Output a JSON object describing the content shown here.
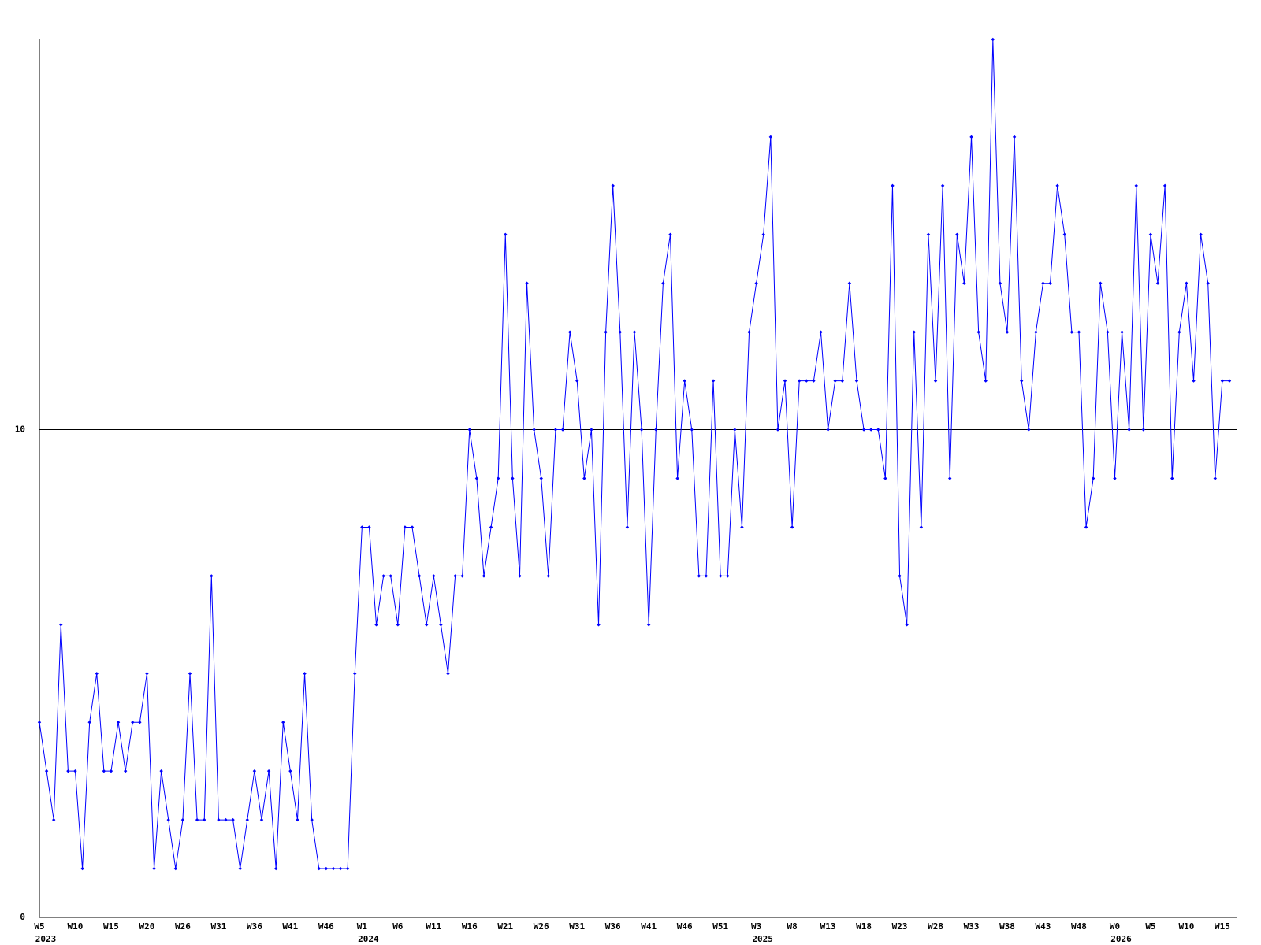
{
  "chart_data": {
    "type": "line",
    "color": "#0000ff",
    "ylim": [
      0,
      18
    ],
    "yticks": [
      0,
      10
    ],
    "grid": true,
    "categories": [
      "W5",
      null,
      null,
      null,
      null,
      "W10",
      null,
      null,
      null,
      null,
      "W15",
      null,
      null,
      null,
      null,
      "W20",
      null,
      null,
      null,
      null,
      "W26",
      null,
      null,
      null,
      null,
      "W31",
      null,
      null,
      null,
      null,
      "W36",
      null,
      null,
      null,
      null,
      "W41",
      null,
      null,
      null,
      null,
      "W46",
      null,
      null,
      null,
      null,
      "W1",
      null,
      null,
      null,
      null,
      "W6",
      null,
      null,
      null,
      null,
      "W11",
      null,
      null,
      null,
      null,
      "W16",
      null,
      null,
      null,
      null,
      "W21",
      null,
      null,
      null,
      null,
      "W26",
      null,
      null,
      null,
      null,
      "W31",
      null,
      null,
      null,
      null,
      "W36",
      null,
      null,
      null,
      null,
      "W41",
      null,
      null,
      null,
      null,
      "W46",
      null,
      null,
      null,
      null,
      "W51",
      null,
      null,
      null,
      null,
      "W3",
      null,
      null,
      null,
      null,
      "W8",
      null,
      null,
      null,
      null,
      "W13",
      null,
      null,
      null,
      null,
      "W18",
      null,
      null,
      null,
      null,
      "W23",
      null,
      null,
      null,
      null,
      "W28",
      null,
      null,
      null,
      null,
      "W33",
      null,
      null,
      null,
      null,
      "W38",
      null,
      null,
      null,
      null,
      "W43",
      null,
      null,
      null,
      null,
      "W48",
      null,
      null,
      null,
      null,
      "W0",
      null,
      null,
      null,
      null,
      "W5",
      null,
      null,
      null,
      null,
      "W10",
      null,
      null,
      null,
      null,
      "W15",
      null
    ],
    "year_labels": [
      {
        "index": 0,
        "label": "2023"
      },
      {
        "index": 45,
        "label": "2024"
      },
      {
        "index": 100,
        "label": "2025"
      },
      {
        "index": 150,
        "label": "2026"
      }
    ],
    "values": [
      4,
      3,
      2,
      6,
      3,
      3,
      1,
      4,
      5,
      3,
      3,
      4,
      3,
      4,
      4,
      5,
      1,
      3,
      2,
      1,
      2,
      5,
      2,
      2,
      7,
      2,
      2,
      2,
      1,
      2,
      3,
      2,
      3,
      1,
      4,
      3,
      2,
      5,
      2,
      1,
      1,
      1,
      1,
      1,
      5,
      8,
      8,
      6,
      7,
      7,
      6,
      8,
      8,
      7,
      6,
      7,
      6,
      5,
      7,
      7,
      10,
      9,
      7,
      8,
      9,
      14,
      9,
      7,
      13,
      10,
      9,
      7,
      10,
      10,
      12,
      11,
      9,
      10,
      6,
      12,
      15,
      12,
      8,
      12,
      10,
      6,
      10,
      13,
      14,
      9,
      11,
      10,
      7,
      7,
      11,
      7,
      7,
      10,
      8,
      12,
      13,
      14,
      16,
      10,
      11,
      8,
      11,
      11,
      11,
      12,
      10,
      11,
      11,
      13,
      11,
      10,
      10,
      10,
      9,
      15,
      7,
      6,
      12,
      8,
      14,
      11,
      15,
      9,
      14,
      13,
      16,
      12,
      11,
      18,
      13,
      12,
      16,
      11,
      10,
      12,
      13,
      13,
      15,
      14,
      12,
      12,
      8,
      9,
      13,
      12,
      9,
      12,
      10,
      15,
      10,
      14,
      13,
      15,
      9,
      12,
      13,
      11,
      14,
      13,
      9,
      11,
      11
    ]
  }
}
